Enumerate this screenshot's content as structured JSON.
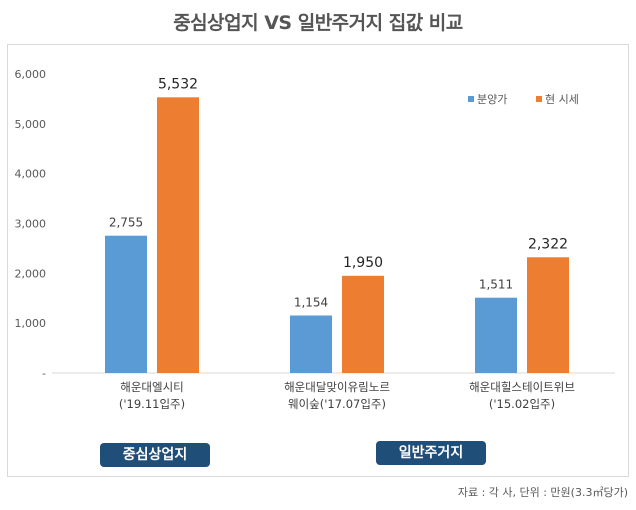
{
  "title": "중심상업지 VS 일반주거지 집값 비교",
  "chart_data": {
    "type": "bar",
    "title": "중심상업지 VS 일반주거지 집값 비교",
    "categories": [
      [
        "해운대엘시티",
        "('19.11입주)"
      ],
      [
        "해운대달맞이유림노르",
        "웨이숲('17.07입주)"
      ],
      [
        "해운대힐스테이트위브",
        "('15.02입주)"
      ]
    ],
    "series": [
      {
        "name": "분양가",
        "color": "#5b9bd5",
        "values": [
          2755,
          1154,
          1511
        ],
        "labels": [
          "2,755",
          "1,154",
          "1,511"
        ]
      },
      {
        "name": "현 시세",
        "color": "#ed7d31",
        "values": [
          5532,
          1950,
          2322
        ],
        "labels": [
          "5,532",
          "1,950",
          "2,322"
        ]
      }
    ],
    "ylim": [
      0,
      6000
    ],
    "yticks": [
      0,
      1000,
      2000,
      3000,
      4000,
      5000,
      6000
    ],
    "ytick_labels": [
      "-",
      "1,000",
      "2,000",
      "3,000",
      "4,000",
      "5,000",
      "6,000"
    ],
    "legend_position": "top-right",
    "grid": false
  },
  "groups": {
    "commercial": "중심상업지",
    "residential": "일반주거지"
  },
  "source": "자료 : 각 사, 단위 : 만원(3.3㎡당가)"
}
